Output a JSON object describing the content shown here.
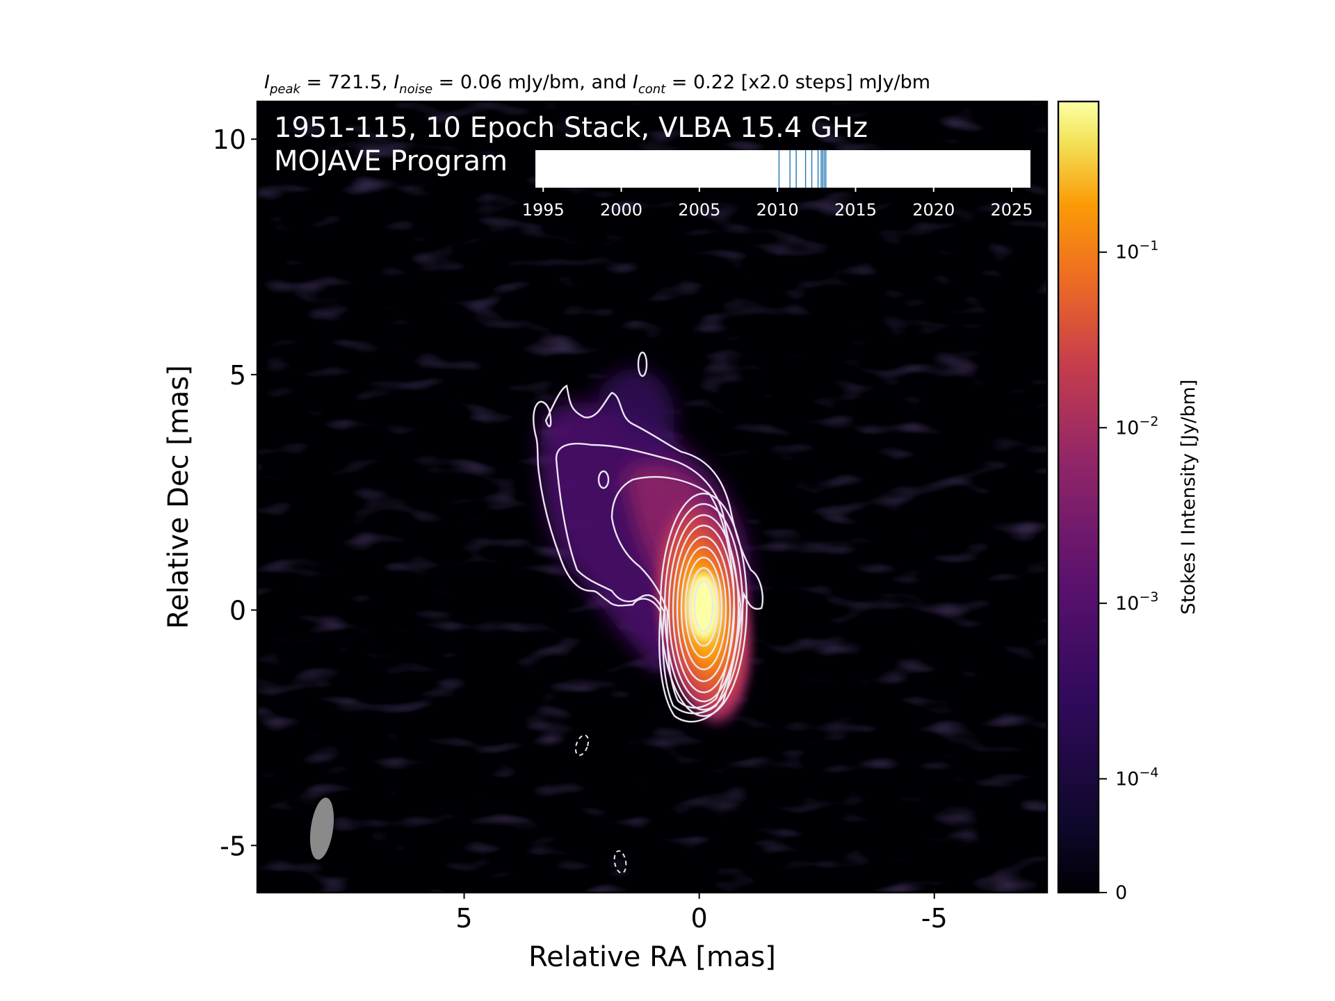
{
  "header": {
    "peak_symbol": "I",
    "peak_sub": "peak",
    "peak_eq": " = 721.5, ",
    "noise_symbol": "I",
    "noise_sub": "noise",
    "noise_eq": " = 0.06 mJy/bm, and ",
    "cont_symbol": "I",
    "cont_sub": "cont",
    "cont_eq": " = 0.22 [x2.0 steps] mJy/bm"
  },
  "overlay": {
    "line1": "1951-115, 10 Epoch Stack, VLBA 15.4 GHz",
    "line2": "MOJAVE Program"
  },
  "timeline": {
    "ticks": [
      "1995",
      "2000",
      "2005",
      "2010",
      "2015",
      "2020",
      "2025"
    ],
    "tick_values": [
      1995,
      2000,
      2005,
      2010,
      2015,
      2020,
      2025
    ],
    "range": [
      1994.5,
      2026.2
    ],
    "epochs": [
      2010.1,
      2010.8,
      2011.2,
      2011.8,
      2012.2,
      2012.6,
      2012.8,
      2012.9,
      2013.0,
      2013.1
    ],
    "epoch_color": "#1f77b4"
  },
  "colors": {
    "background": "#000004",
    "contour": "#ece6f2",
    "beam": "#8a8a8a",
    "colorbar_stops": [
      "#000004",
      "#1b0c41",
      "#4a0c6b",
      "#781c6d",
      "#a52c60",
      "#cf4446",
      "#ed6925",
      "#fb9b06",
      "#f7d13d",
      "#fcffa4"
    ]
  },
  "chart_data": {
    "type": "heatmap",
    "title": "",
    "xlabel": "Relative RA [mas]",
    "ylabel": "Relative Dec [mas]",
    "xlim": [
      9.4,
      -7.4
    ],
    "ylim": [
      -6.0,
      10.8
    ],
    "x_ticks": [
      "5",
      "0",
      "-5"
    ],
    "x_tick_values": [
      5,
      0,
      -5
    ],
    "y_ticks": [
      "10",
      "5",
      "0",
      "-5"
    ],
    "y_tick_values": [
      10,
      5,
      0,
      -5
    ],
    "peak_mJy_per_beam": 721.5,
    "noise_mJy_per_beam": 0.06,
    "lowest_contour_mJy_per_beam": 0.22,
    "contour_step_factor": 2.0,
    "core_position": [
      0,
      0
    ],
    "jet_direction": "north-east",
    "colorbar": {
      "label": "Stokes I Intensity [Jy/bm]",
      "scale": "log",
      "range_Jy_per_beam": [
        0,
        0.7215
      ],
      "ticks": [
        {
          "base": "10",
          "exp": "−1",
          "value": 0.1
        },
        {
          "base": "10",
          "exp": "−2",
          "value": 0.01
        },
        {
          "base": "10",
          "exp": "−3",
          "value": 0.001
        },
        {
          "base": "10",
          "exp": "−4",
          "value": 0.0001
        },
        {
          "base": "0",
          "exp": "",
          "value": 0
        }
      ]
    },
    "grid": false,
    "legend": "none"
  }
}
